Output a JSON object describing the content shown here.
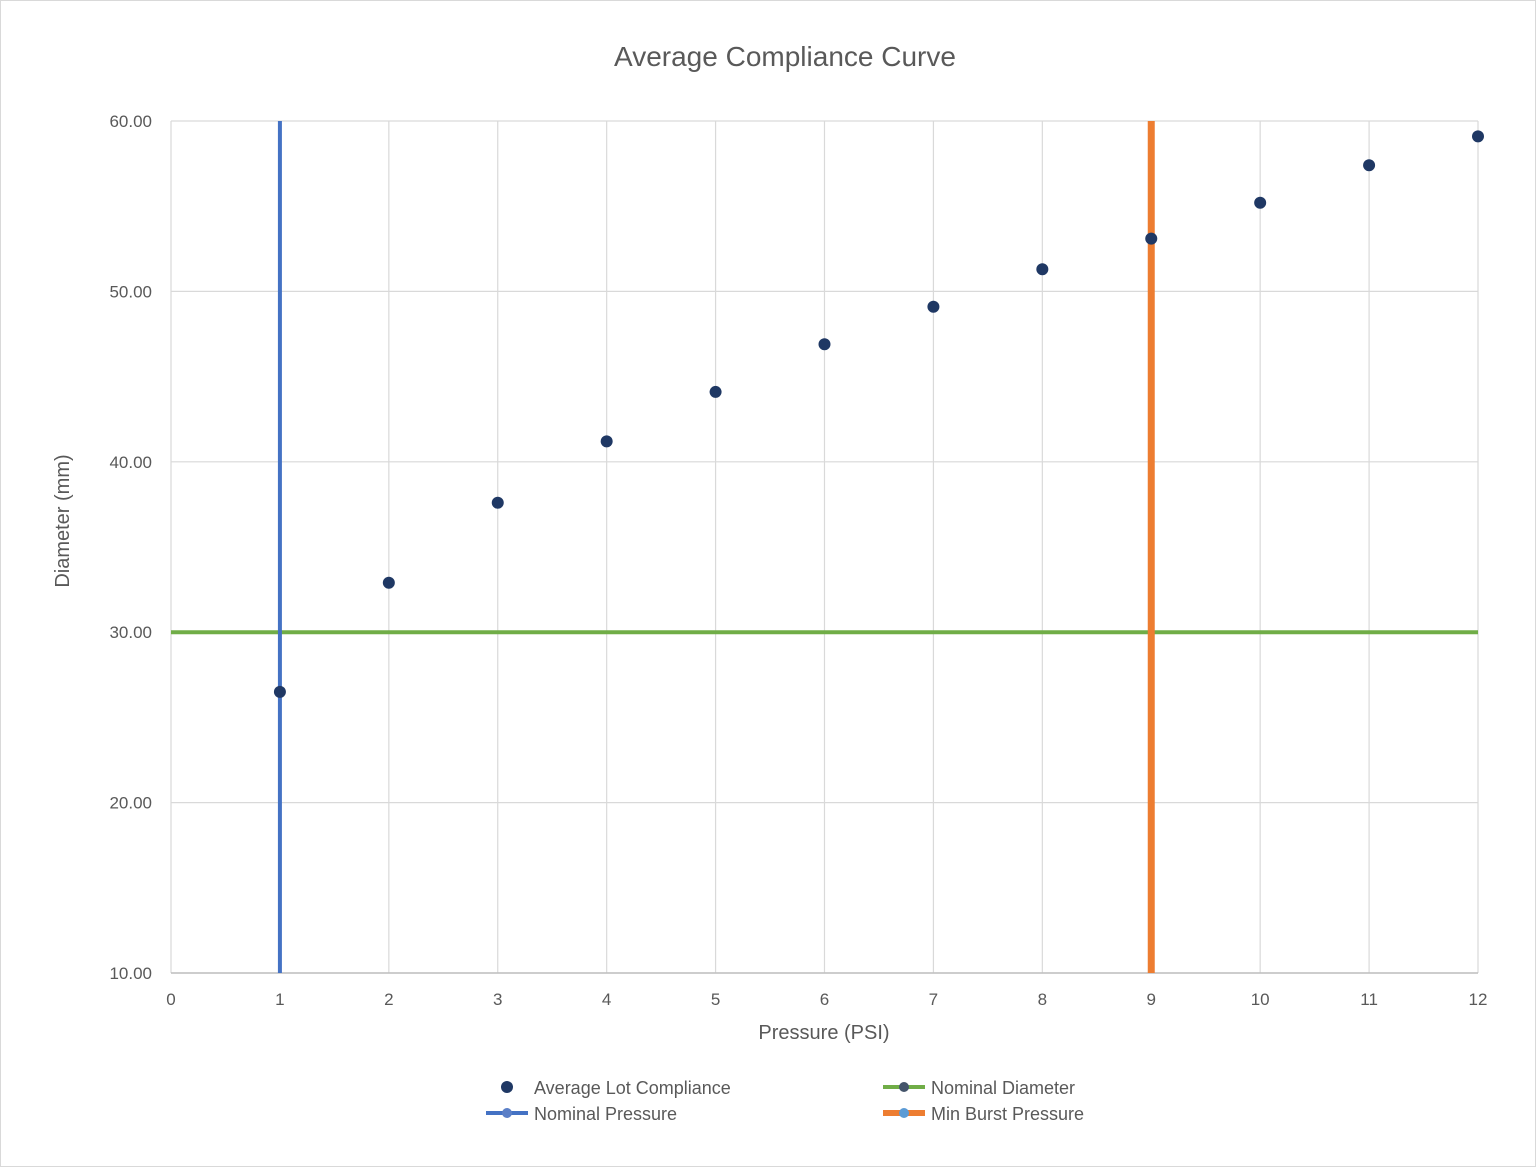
{
  "chart_data": {
    "type": "scatter",
    "title": "Average Compliance Curve",
    "xlabel": "Pressure (PSI)",
    "ylabel": "Diameter (mm)",
    "xlim": [
      0,
      12
    ],
    "ylim": [
      10,
      60
    ],
    "x_ticks": [
      "0",
      "1",
      "2",
      "3",
      "4",
      "5",
      "6",
      "7",
      "8",
      "9",
      "10",
      "11",
      "12"
    ],
    "y_ticks": [
      "10.00",
      "20.00",
      "30.00",
      "40.00",
      "50.00",
      "60.00"
    ],
    "grid": true,
    "legend_position": "bottom",
    "series": [
      {
        "name": "Average Lot Compliance",
        "type": "scatter",
        "color": "#1f3864",
        "x": [
          1,
          2,
          3,
          4,
          5,
          6,
          7,
          8,
          9,
          10,
          11,
          12
        ],
        "y": [
          26.5,
          32.9,
          37.6,
          41.2,
          44.1,
          46.9,
          49.1,
          51.3,
          53.1,
          55.2,
          57.4,
          59.1
        ]
      },
      {
        "name": "Nominal Diameter",
        "type": "hline",
        "color": "#70ad47",
        "x": [
          0,
          12
        ],
        "y": [
          30,
          30
        ]
      },
      {
        "name": "Nominal Pressure",
        "type": "vline",
        "color": "#4472c4",
        "x": [
          1,
          1
        ],
        "y": [
          10,
          60
        ]
      },
      {
        "name": "Min Burst Pressure",
        "type": "vline",
        "color": "#ed7d31",
        "x": [
          9,
          9
        ],
        "y": [
          10,
          60
        ]
      }
    ]
  }
}
